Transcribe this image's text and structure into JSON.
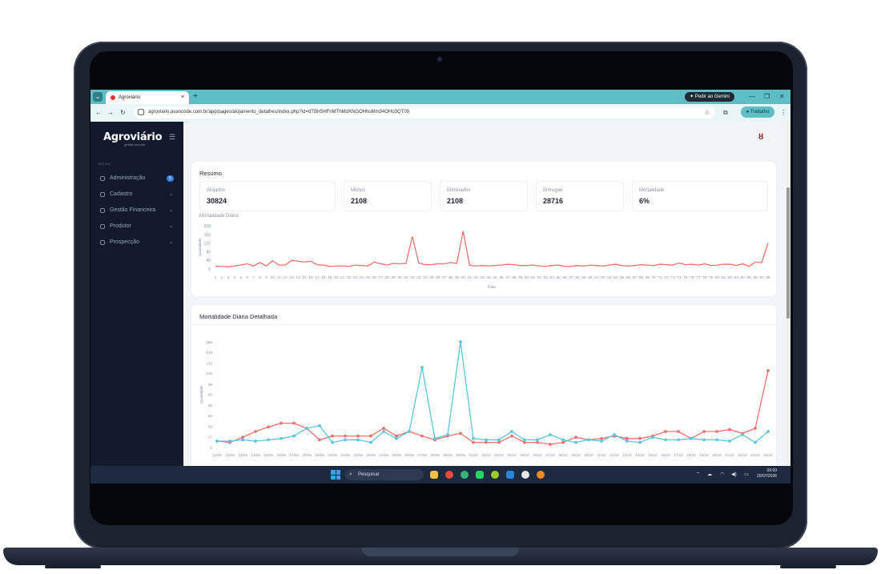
{
  "browser": {
    "tab_title": "Agroviário",
    "tab_close": "×",
    "new_tab": "+",
    "gemini_label": "Pedir ao Gemini",
    "url": "agroviario.avancode.com.br/app/pages/alojamento_detalhes/index.php?id=dTBhSHFnMThMdXNGOHhuMm94OHo3QT09",
    "profile_label": "Trabalho"
  },
  "sidebar": {
    "logo": "Agroviário",
    "logo_sub": "gestão avícola",
    "menu_title": "MENU",
    "items": [
      {
        "label": "Administração",
        "badge": "5"
      },
      {
        "label": "Cadastro"
      },
      {
        "label": "Gestão Financeira"
      },
      {
        "label": "Produtor"
      },
      {
        "label": "Prospecção"
      }
    ]
  },
  "summary": {
    "title": "Resumo",
    "stats": [
      {
        "label": "Alojados",
        "value": "30824"
      },
      {
        "label": "Mortos",
        "value": "2108"
      },
      {
        "label": "Eliminados",
        "value": "2108"
      },
      {
        "label": "Entregue",
        "value": "28716"
      },
      {
        "label": "Mortalidade",
        "value": "6%"
      }
    ],
    "chart_title": "Mortalidade Diária"
  },
  "detailed": {
    "title": "Mortalidade Diária Detalhada"
  },
  "taskbar": {
    "search_placeholder": "Pesquisar",
    "time": "09:00",
    "date": "20/07/2026"
  },
  "chart_data": [
    {
      "type": "line",
      "title": "Mortalidade Diária",
      "xlabel": "Dias",
      "ylabel": "Quantidade",
      "ylim": [
        0,
        200
      ],
      "yticks": [
        0,
        40,
        80,
        120,
        160,
        200
      ],
      "x": [
        1,
        2,
        3,
        4,
        5,
        6,
        7,
        8,
        9,
        10,
        11,
        12,
        13,
        14,
        15,
        16,
        17,
        18,
        19,
        20,
        21,
        22,
        23,
        24,
        25,
        26,
        27,
        28,
        29,
        30,
        31,
        32,
        33,
        34,
        35,
        36,
        37,
        38,
        39,
        40,
        41,
        42,
        43,
        44,
        45,
        46,
        47,
        48,
        49,
        50,
        51,
        52,
        53,
        54,
        55,
        56,
        57,
        58,
        59,
        60,
        61,
        62,
        63,
        64,
        65,
        66,
        67,
        68,
        69,
        70,
        71,
        72,
        73,
        74,
        75,
        76,
        77,
        78,
        79,
        80,
        81,
        82,
        83,
        84,
        85,
        86,
        87,
        88
      ],
      "series": [
        {
          "color": "#f07070",
          "values": [
            12,
            12,
            10,
            14,
            18,
            24,
            14,
            30,
            14,
            38,
            18,
            18,
            40,
            36,
            32,
            36,
            20,
            18,
            12,
            14,
            14,
            12,
            18,
            16,
            14,
            32,
            24,
            18,
            26,
            24,
            26,
            150,
            28,
            20,
            20,
            24,
            24,
            30,
            26,
            175,
            18,
            14,
            16,
            14,
            16,
            18,
            22,
            20,
            16,
            16,
            18,
            14,
            12,
            16,
            18,
            12,
            12,
            16,
            14,
            18,
            16,
            14,
            18,
            22,
            16,
            14,
            16,
            20,
            18,
            16,
            22,
            20,
            18,
            28,
            20,
            22,
            18,
            24,
            16,
            18,
            22,
            22,
            16,
            24,
            12,
            32,
            30,
            120
          ]
        }
      ],
      "grid": false
    },
    {
      "type": "line",
      "title": "Mortalidade Diária Detalhada",
      "ylabel": "Quantidade",
      "ylim": [
        0,
        165
      ],
      "yticks": [
        0,
        17,
        33,
        50,
        66,
        83,
        99,
        116,
        132,
        149,
        165
      ],
      "categories": [
        "11/09",
        "12/09",
        "13/09",
        "14/09",
        "15/09",
        "16/09",
        "17/09",
        "18/09",
        "19/09",
        "20/09",
        "21/09",
        "22/09",
        "23/09",
        "24/09",
        "25/09",
        "26/09",
        "27/09",
        "28/09",
        "29/09",
        "30/09",
        "01/10",
        "02/10",
        "03/10",
        "04/10",
        "05/10",
        "06/10",
        "07/10",
        "08/10",
        "09/10",
        "10/10",
        "11/10",
        "12/10",
        "13/10",
        "14/10",
        "15/10",
        "16/10",
        "17/10",
        "18/10",
        "19/10",
        "20/10",
        "21/10",
        "22/10",
        "23/10",
        "24/10"
      ],
      "series": [
        {
          "color": "#f07070",
          "values": [
            10,
            8,
            16,
            25,
            32,
            38,
            38,
            30,
            12,
            18,
            18,
            18,
            18,
            30,
            18,
            25,
            18,
            12,
            18,
            22,
            8,
            8,
            8,
            18,
            8,
            8,
            5,
            8,
            16,
            12,
            14,
            18,
            14,
            14,
            18,
            25,
            25,
            14,
            25,
            25,
            28,
            22,
            30,
            120
          ]
        },
        {
          "color": "#5bc5e0",
          "values": [
            10,
            10,
            12,
            10,
            12,
            14,
            18,
            30,
            34,
            8,
            12,
            12,
            8,
            25,
            14,
            25,
            125,
            14,
            20,
            165,
            14,
            12,
            12,
            25,
            12,
            12,
            20,
            12,
            8,
            12,
            10,
            20,
            10,
            8,
            16,
            12,
            12,
            14,
            12,
            12,
            10,
            20,
            8,
            25
          ]
        }
      ],
      "grid": false
    }
  ]
}
